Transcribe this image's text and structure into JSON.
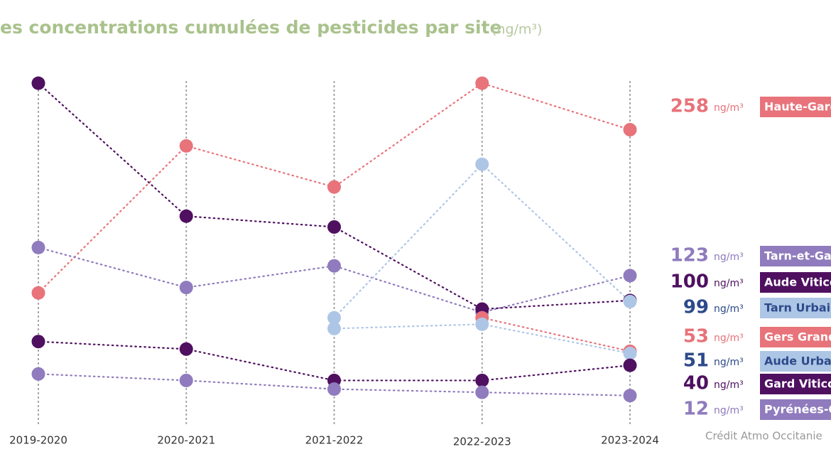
{
  "chart_data": {
    "type": "line",
    "title": "es concentrations cumulées de pesticides par site",
    "unit_title": "(ng/m³)",
    "unit": "ng/m³",
    "credit": "Crédit Atmo Occitanie",
    "categories": [
      "2019-2020",
      "2020-2021",
      "2021-2022",
      "2022-2023",
      "2023-2024"
    ],
    "ylim": [
      0,
      378
    ],
    "grid": true,
    "series": [
      {
        "name": "Haute-Garonne",
        "color": "#e8737a",
        "text_color": "#e8737a",
        "values": [
          107,
          243,
          205,
          301,
          258
        ]
      },
      {
        "name": "Tarn-et-Garonne",
        "color": "#8f7bbd",
        "text_color": "#8f7bbd",
        "values": [
          149,
          112,
          132,
          89,
          123
        ]
      },
      {
        "name": "Aude Viticole",
        "color": "#4f1060",
        "text_color": "#4f1060",
        "values": [
          301,
          178,
          168,
          92,
          100
        ]
      },
      {
        "name": "Tarn Urbain",
        "color": "#aec6e6",
        "text_color": "#2d4a8a",
        "values": [
          null,
          null,
          84,
          226,
          99
        ]
      },
      {
        "name": "Gers Grandes cultures",
        "color": "#e8737a",
        "text_color": "#e8737a",
        "values": [
          null,
          null,
          null,
          84,
          53
        ]
      },
      {
        "name": "Aude Urbain",
        "color": "#aec6e6",
        "text_color": "#2d4a8a",
        "values": [
          null,
          null,
          74,
          78,
          51
        ]
      },
      {
        "name": "Gard Viticole",
        "color": "#4f1060",
        "text_color": "#4f1060",
        "values": [
          62,
          55,
          26,
          26,
          40
        ]
      },
      {
        "name": "Pyrénées-Orientales",
        "color": "#8f7bbd",
        "text_color": "#8f7bbd",
        "values": [
          32,
          26,
          18,
          15,
          12
        ]
      }
    ]
  }
}
